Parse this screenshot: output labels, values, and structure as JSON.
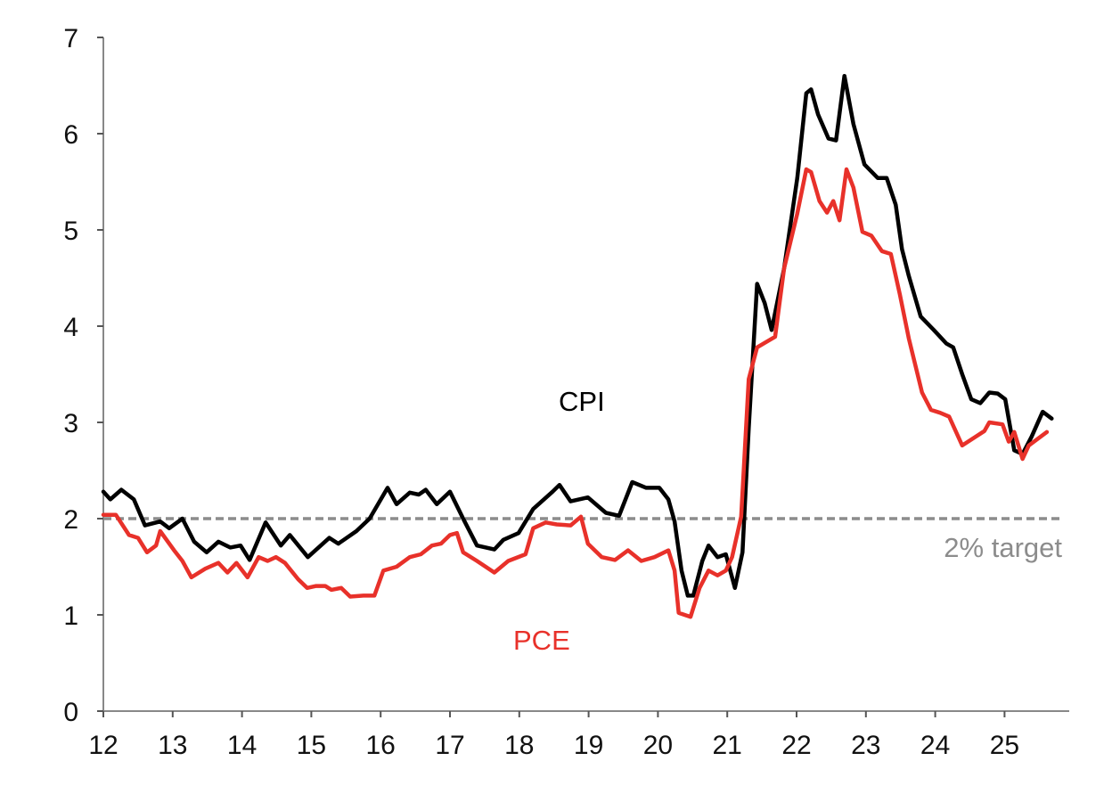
{
  "chart_data": {
    "type": "line",
    "title": "",
    "xlabel": "",
    "ylabel": "",
    "xlim": [
      12,
      25.9
    ],
    "ylim": [
      0,
      7
    ],
    "grid": false,
    "x_ticks": [
      "12",
      "13",
      "14",
      "15",
      "16",
      "17",
      "18",
      "19",
      "20",
      "21",
      "22",
      "23",
      "24",
      "25"
    ],
    "y_ticks": [
      "0",
      "1",
      "2",
      "3",
      "4",
      "5",
      "6",
      "7"
    ],
    "reference_line": {
      "value": 2,
      "label": "2% target",
      "color": "#8c8c8c"
    },
    "series": [
      {
        "name": "CPI",
        "color": "#000000",
        "x": [
          12.0,
          12.1,
          12.26,
          12.44,
          12.6,
          12.82,
          12.95,
          13.14,
          13.31,
          13.49,
          13.66,
          13.83,
          13.98,
          14.11,
          14.34,
          14.56,
          14.69,
          14.95,
          15.26,
          15.39,
          15.65,
          15.84,
          16.1,
          16.23,
          16.42,
          16.55,
          16.65,
          16.81,
          17.0,
          17.19,
          17.39,
          17.64,
          17.77,
          17.99,
          18.2,
          18.48,
          18.58,
          18.74,
          18.99,
          19.25,
          19.44,
          19.63,
          19.83,
          20.02,
          20.15,
          20.24,
          20.34,
          20.43,
          20.51,
          20.64,
          20.73,
          20.86,
          20.98,
          21.11,
          21.22,
          21.31,
          21.43,
          21.54,
          21.64,
          21.82,
          22.01,
          22.14,
          22.21,
          22.31,
          22.46,
          22.57,
          22.69,
          22.82,
          22.98,
          23.17,
          23.3,
          23.43,
          23.52,
          23.62,
          23.79,
          23.98,
          24.16,
          24.26,
          24.39,
          24.52,
          24.65,
          24.78,
          24.9,
          25.01,
          25.14,
          25.26,
          25.39,
          25.55,
          25.68
        ],
        "values": [
          2.28,
          2.2,
          2.3,
          2.2,
          1.93,
          1.97,
          1.9,
          2.0,
          1.76,
          1.65,
          1.76,
          1.7,
          1.72,
          1.57,
          1.96,
          1.72,
          1.83,
          1.6,
          1.8,
          1.74,
          1.87,
          2.0,
          2.32,
          2.15,
          2.27,
          2.25,
          2.3,
          2.15,
          2.28,
          2.0,
          1.72,
          1.68,
          1.78,
          1.85,
          2.1,
          2.28,
          2.35,
          2.18,
          2.22,
          2.06,
          2.03,
          2.38,
          2.32,
          2.32,
          2.2,
          1.97,
          1.46,
          1.2,
          1.2,
          1.56,
          1.72,
          1.6,
          1.63,
          1.28,
          1.65,
          2.94,
          4.44,
          4.24,
          3.96,
          4.6,
          5.54,
          6.42,
          6.46,
          6.2,
          5.95,
          5.93,
          6.6,
          6.1,
          5.68,
          5.54,
          5.54,
          5.26,
          4.8,
          4.52,
          4.1,
          3.96,
          3.82,
          3.78,
          3.5,
          3.24,
          3.2,
          3.31,
          3.3,
          3.24,
          2.71,
          2.67,
          2.85,
          3.11,
          3.04
        ],
        "label": "CPI"
      },
      {
        "name": "PCE",
        "color": "#e8312a",
        "x": [
          12.0,
          12.18,
          12.37,
          12.5,
          12.63,
          12.76,
          12.82,
          13.02,
          13.14,
          13.27,
          13.47,
          13.66,
          13.79,
          13.92,
          14.08,
          14.24,
          14.37,
          14.49,
          14.62,
          14.81,
          14.94,
          15.07,
          15.2,
          15.29,
          15.43,
          15.56,
          15.75,
          15.91,
          16.04,
          16.23,
          16.42,
          16.58,
          16.74,
          16.87,
          17.0,
          17.1,
          17.19,
          17.39,
          17.64,
          17.84,
          18.09,
          18.2,
          18.38,
          18.54,
          18.74,
          18.89,
          18.99,
          19.19,
          19.38,
          19.57,
          19.76,
          19.95,
          20.15,
          20.24,
          20.3,
          20.47,
          20.6,
          20.73,
          20.86,
          20.98,
          21.07,
          21.2,
          21.31,
          21.43,
          21.69,
          21.82,
          22.01,
          22.14,
          22.21,
          22.33,
          22.44,
          22.53,
          22.62,
          22.72,
          22.82,
          22.95,
          23.08,
          23.23,
          23.36,
          23.49,
          23.62,
          23.81,
          23.94,
          24.07,
          24.2,
          24.39,
          24.58,
          24.71,
          24.78,
          24.97,
          25.06,
          25.14,
          25.26,
          25.35,
          25.61
        ],
        "values": [
          2.04,
          2.04,
          1.83,
          1.8,
          1.65,
          1.72,
          1.87,
          1.67,
          1.56,
          1.39,
          1.48,
          1.54,
          1.44,
          1.54,
          1.39,
          1.6,
          1.56,
          1.6,
          1.54,
          1.37,
          1.28,
          1.3,
          1.3,
          1.26,
          1.28,
          1.19,
          1.2,
          1.2,
          1.46,
          1.5,
          1.6,
          1.63,
          1.72,
          1.74,
          1.83,
          1.85,
          1.65,
          1.56,
          1.44,
          1.56,
          1.63,
          1.9,
          1.96,
          1.94,
          1.93,
          2.02,
          1.74,
          1.6,
          1.57,
          1.67,
          1.56,
          1.6,
          1.67,
          1.46,
          1.02,
          0.98,
          1.28,
          1.46,
          1.41,
          1.46,
          1.6,
          2.02,
          3.45,
          3.78,
          3.89,
          4.6,
          5.17,
          5.63,
          5.6,
          5.3,
          5.18,
          5.3,
          5.1,
          5.63,
          5.44,
          4.98,
          4.94,
          4.78,
          4.75,
          4.33,
          3.87,
          3.31,
          3.13,
          3.1,
          3.06,
          2.76,
          2.85,
          2.91,
          3.0,
          2.98,
          2.8,
          2.9,
          2.62,
          2.76,
          2.9
        ],
        "label": "PCE"
      }
    ]
  }
}
